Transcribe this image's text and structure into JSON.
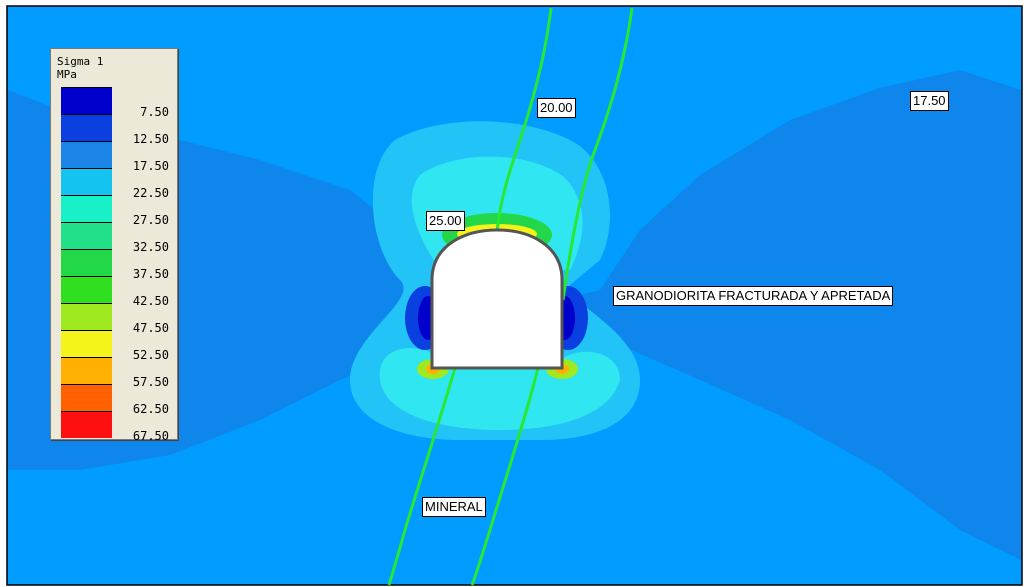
{
  "legend": {
    "title": "Sigma 1",
    "unit": "MPa",
    "entries": [
      {
        "value": "7.50",
        "color": "#0000cc"
      },
      {
        "value": "12.50",
        "color": "#0a3fe0"
      },
      {
        "value": "17.50",
        "color": "#1b86e8"
      },
      {
        "value": "22.50",
        "color": "#14c3f0"
      },
      {
        "value": "27.50",
        "color": "#18f0c8"
      },
      {
        "value": "32.50",
        "color": "#22e08a"
      },
      {
        "value": "37.50",
        "color": "#22d848"
      },
      {
        "value": "42.50",
        "color": "#30e020"
      },
      {
        "value": "47.50",
        "color": "#a0e820"
      },
      {
        "value": "52.50",
        "color": "#f4f41a"
      },
      {
        "value": "57.50",
        "color": "#ffb000"
      },
      {
        "value": "62.50",
        "color": "#ff6000"
      },
      {
        "value": "67.50",
        "color": "#ff1010"
      }
    ]
  },
  "labels": {
    "contour_20": "20.00",
    "contour_17": "17.50",
    "contour_25": "25.00",
    "rock_mass": "GRANODIORITA FRACTURADA Y APRETADA",
    "ore_zone": "MINERAL"
  },
  "colors": {
    "background": "#0f86ec",
    "contour_outer": "#009cff",
    "contour_mid": "#22c4f8",
    "contour_inner": "#30e6f0",
    "vein": "#27e832",
    "excavation_fill": "#ffffff",
    "excavation_outline": "#555555"
  }
}
